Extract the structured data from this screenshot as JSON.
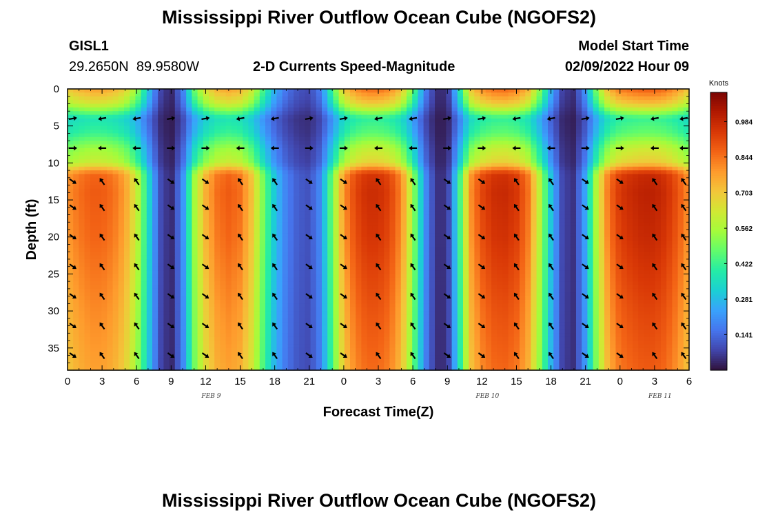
{
  "titles": {
    "top": "Mississippi River Outflow Ocean Cube (NGOFS2)",
    "bottom": "Mississippi River Outflow Ocean Cube (NGOFS2)"
  },
  "header": {
    "station_id": "GISL1",
    "coordinates": "29.2650N  89.9580W",
    "plot_name": "2-D Currents Speed-Magnitude",
    "start_label": "Model Start Time",
    "start_value": "02/09/2022 Hour 09"
  },
  "chart_data": {
    "type": "heatmap",
    "xlabel": "Forecast Time(Z)",
    "ylabel": "Depth (ft)",
    "x_hour_range": [
      0,
      54
    ],
    "ylim": [
      38,
      0
    ],
    "x_ticks": [
      "0",
      "3",
      "6",
      "9",
      "12",
      "15",
      "18",
      "21",
      "0",
      "3",
      "6",
      "9",
      "12",
      "15",
      "18",
      "21",
      "0",
      "3",
      "6"
    ],
    "y_ticks": [
      "0",
      "5",
      "10",
      "15",
      "20",
      "25",
      "30",
      "35"
    ],
    "date_labels": [
      {
        "text": "FEB 9",
        "hour": 12
      },
      {
        "text": "FEB 10",
        "hour": 36
      },
      {
        "text": "FEB 11",
        "hour": 51
      }
    ],
    "colorbar": {
      "title": "Knots",
      "labels": [
        "0.984",
        "0.844",
        "0.703",
        "0.562",
        "0.422",
        "0.281",
        "0.141"
      ],
      "range": [
        0,
        1.1
      ],
      "colormap": [
        "#30123b",
        "#4145ab",
        "#4675ed",
        "#39a2fc",
        "#1bcfd4",
        "#24eca6",
        "#61fc6c",
        "#a4fc3b",
        "#d1e834",
        "#f3c63a",
        "#fe9b2d",
        "#f36315",
        "#d93806",
        "#b11901",
        "#7a0403"
      ]
    },
    "speed_timeseries": {
      "hours": [
        0,
        1,
        2,
        3,
        4,
        5,
        6,
        7,
        8,
        9,
        10,
        11,
        12,
        13,
        14,
        15,
        16,
        17,
        18,
        19,
        20,
        21,
        22,
        23,
        24,
        25,
        26,
        27,
        28,
        29,
        30,
        31,
        32,
        33,
        34,
        35,
        36,
        37,
        38,
        39,
        40,
        41,
        42,
        43,
        44,
        45,
        46,
        47,
        48,
        49,
        50,
        51,
        52,
        53,
        54
      ],
      "values": [
        0.8,
        0.85,
        0.88,
        0.88,
        0.85,
        0.78,
        0.62,
        0.35,
        0.1,
        0.03,
        0.2,
        0.55,
        0.75,
        0.85,
        0.88,
        0.85,
        0.72,
        0.5,
        0.3,
        0.18,
        0.12,
        0.1,
        0.2,
        0.5,
        0.8,
        0.92,
        0.97,
        0.97,
        0.93,
        0.82,
        0.55,
        0.22,
        0.05,
        0.05,
        0.4,
        0.8,
        0.92,
        0.97,
        0.98,
        0.95,
        0.85,
        0.6,
        0.3,
        0.08,
        0.05,
        0.25,
        0.6,
        0.85,
        0.95,
        0.98,
        1.0,
        1.0,
        0.97,
        0.9,
        0.8
      ]
    },
    "depth_profile": {
      "depths_ft": [
        0,
        2,
        4,
        6,
        8,
        10,
        11.5,
        14,
        20,
        30,
        38
      ],
      "factors": [
        0.88,
        0.72,
        0.42,
        0.48,
        0.62,
        0.7,
        0.98,
        1.0,
        0.98,
        0.92,
        0.88
      ]
    },
    "vector_depths_ft": [
      4,
      8,
      12.5,
      16,
      20,
      24,
      28,
      32,
      36
    ],
    "vector_hours": [
      0,
      3,
      6,
      9,
      12,
      15,
      18,
      21,
      24,
      27,
      30,
      33,
      36,
      39,
      42,
      45,
      48,
      51,
      54
    ]
  }
}
